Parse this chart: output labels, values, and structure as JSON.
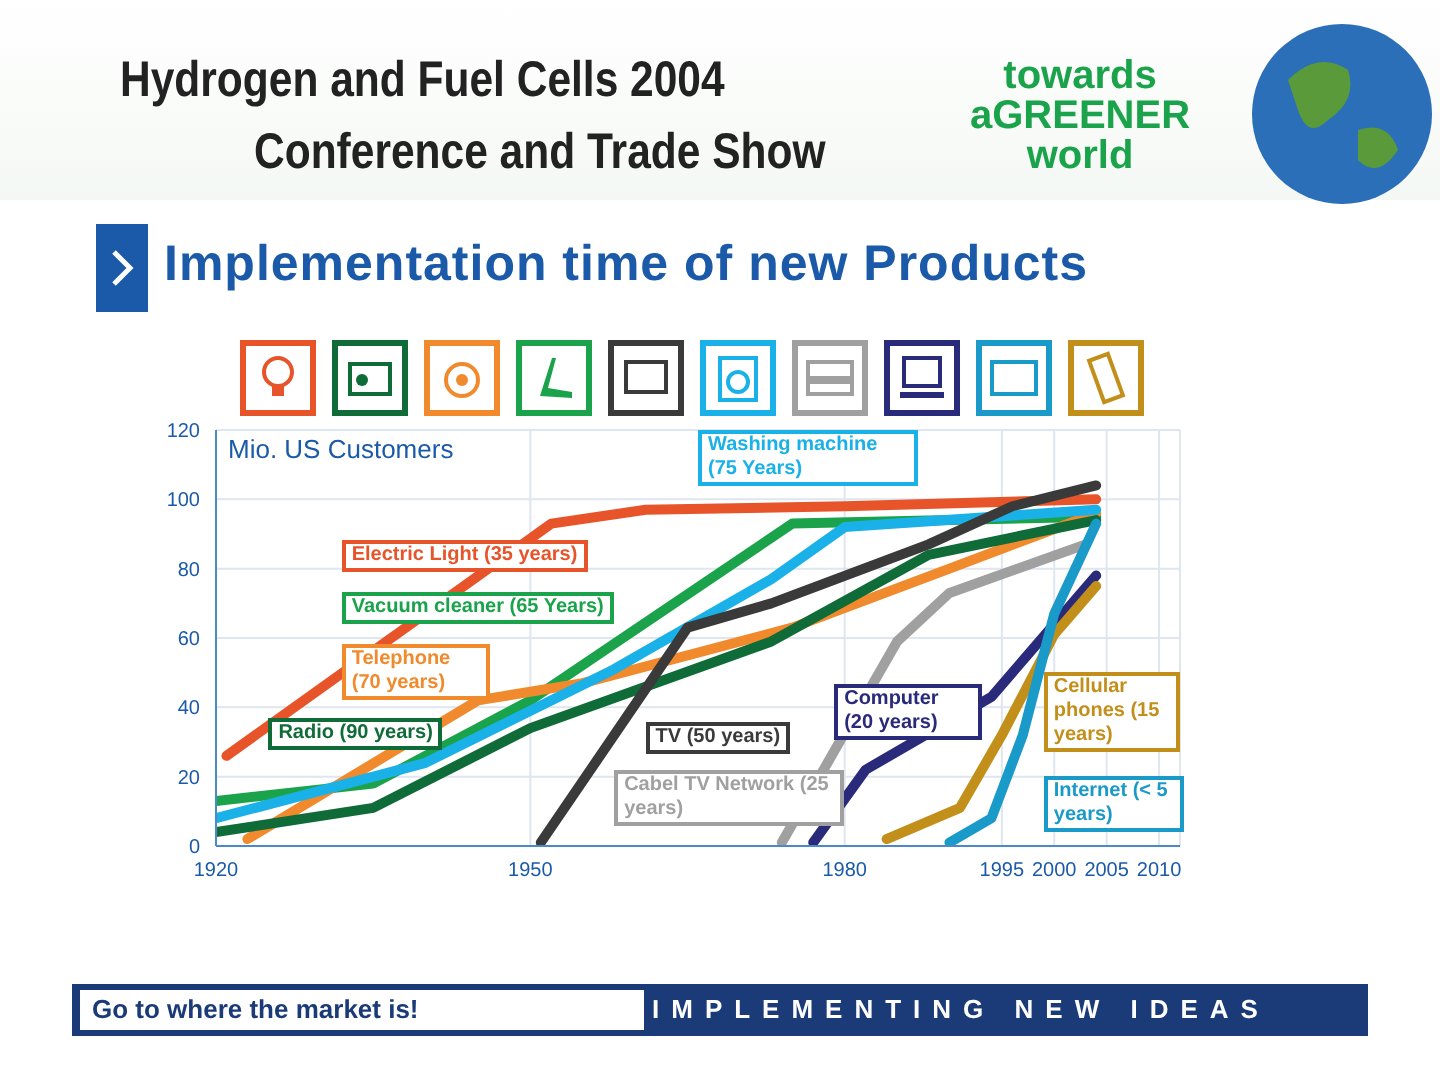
{
  "chart_data": {
    "type": "line",
    "title": "Implementation time of new Products",
    "ylabel": "Mio. US Customers",
    "annotations": [
      "Hydrogen and Fuel Cells 2004",
      "Conference and Trade Show",
      "towards aGREENER world",
      "Go to where the market is!",
      "IMPLEMENTING NEW IDEAS"
    ],
    "xlim": [
      1920,
      2012
    ],
    "xticks": [
      1920,
      1950,
      1980,
      1995,
      2000,
      2005,
      2010
    ],
    "ylim": [
      0,
      120
    ],
    "yticks": [
      0,
      20,
      40,
      60,
      80,
      100,
      120
    ],
    "grid": true,
    "marker": "none",
    "line_style": "solid",
    "series": [
      {
        "name": "Electric Light (35 years)",
        "color": "#e8542a",
        "x": [
          1921,
          1952,
          1961,
          1980,
          2004
        ],
        "values": [
          26,
          93,
          97,
          98,
          100
        ]
      },
      {
        "name": "Vacuum cleaner (65 Years)",
        "color": "#1aa34a",
        "x": [
          1920,
          1935,
          1950,
          1975,
          2004
        ],
        "values": [
          13,
          18,
          42,
          93,
          95
        ]
      },
      {
        "name": "Telephone (70 years)",
        "color": "#f08a2c",
        "x": [
          1923,
          1945,
          1955,
          1975,
          1990,
          2004
        ],
        "values": [
          2,
          42,
          47,
          63,
          80,
          96
        ]
      },
      {
        "name": "Washing machine (75 Years)",
        "color": "#1ab0e8",
        "x": [
          1920,
          1940,
          1958,
          1973,
          1980,
          2004
        ],
        "values": [
          8,
          24,
          51,
          77,
          92,
          97
        ]
      },
      {
        "name": "Radio (90 years)",
        "color": "#0f6b38",
        "x": [
          1920,
          1935,
          1950,
          1973,
          1988,
          2004
        ],
        "values": [
          4,
          11,
          34,
          59,
          84,
          94
        ]
      },
      {
        "name": "TV (50 years)",
        "color": "#3a3a3a",
        "x": [
          1951,
          1965,
          1973,
          1988,
          1996,
          2004
        ],
        "values": [
          1,
          63,
          70,
          87,
          98,
          104
        ]
      },
      {
        "name": "Cabel TV Network (25 years)",
        "color": "#a0a0a0",
        "x": [
          1974,
          1985,
          1990,
          2003
        ],
        "values": [
          1,
          59,
          73,
          87
        ]
      },
      {
        "name": "Computer (20 years)",
        "color": "#2a2a7a",
        "x": [
          1977,
          1982,
          1994,
          2004
        ],
        "values": [
          1,
          22,
          43,
          78
        ]
      },
      {
        "name": "Cellular phones (15 years)",
        "color": "#c2901a",
        "x": [
          1984,
          1991,
          1995,
          2000,
          2004
        ],
        "values": [
          2,
          11,
          32,
          61,
          75
        ]
      },
      {
        "name": "Internet (< 5 years)",
        "color": "#1a9ac8",
        "x": [
          1990,
          1994,
          1997,
          2000,
          2004
        ],
        "values": [
          1,
          8,
          32,
          67,
          93
        ]
      }
    ]
  }
}
